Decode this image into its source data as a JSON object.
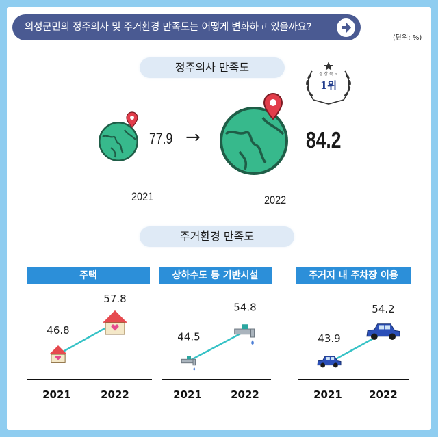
{
  "header": {
    "title": "의성군민의 정주의사 및 주거환경 만족도는 어떻게 변화하고 있을까요?",
    "unit": "(단위: %)",
    "button_icon": "arrow-right-circle-icon"
  },
  "settle": {
    "pill": "정주의사 만족도",
    "badge_rank": "1위",
    "badge_text": "경 상 북 도",
    "arrow": "→",
    "icon": "globe-pin-icon"
  },
  "housing": {
    "pill": "주거환경 만족도"
  },
  "colors": {
    "background": "#8fcdf0",
    "title_bar": "#4a5a92",
    "pill": "#dfeaf6",
    "category_bar": "#2c8fd9",
    "trend_line": "#36c2c6"
  },
  "chart_data": [
    {
      "type": "line",
      "subject": "정주의사 만족도",
      "x": [
        "2021",
        "2022"
      ],
      "values": [
        77.9,
        84.2
      ],
      "value_labels": [
        "77.9",
        "84.2"
      ],
      "unit": "%"
    },
    {
      "type": "line",
      "category": "주택",
      "x": [
        "2021",
        "2022"
      ],
      "values": [
        46.8,
        57.8
      ],
      "value_labels": [
        "46.8",
        "57.8"
      ],
      "icon": "house-icon"
    },
    {
      "type": "line",
      "category": "상하수도 등 기반시설",
      "x": [
        "2021",
        "2022"
      ],
      "values": [
        44.5,
        54.8
      ],
      "value_labels": [
        "44.5",
        "54.8"
      ],
      "icon": "faucet-icon"
    },
    {
      "type": "line",
      "category": "주거지 내 주차장 이용",
      "x": [
        "2021",
        "2022"
      ],
      "values": [
        43.9,
        54.2
      ],
      "value_labels": [
        "43.9",
        "54.2"
      ],
      "icon": "car-icon"
    }
  ]
}
